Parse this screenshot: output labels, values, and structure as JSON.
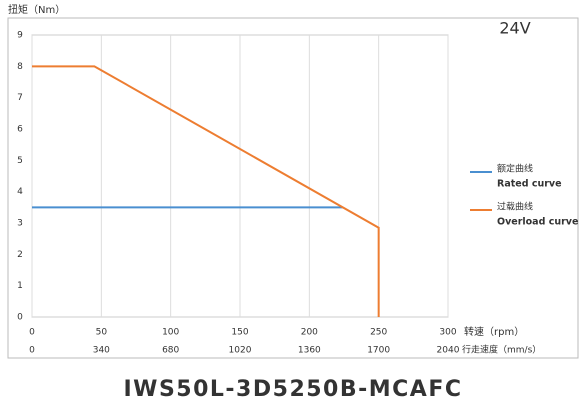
{
  "chart_data": {
    "type": "line",
    "title": "24V",
    "ylabel": "扭矩（Nm）",
    "xlabel": "转速（rpm）",
    "x2label": "行走速度（mm/s）",
    "caption": "IWS50L-3D5250B-MCAFC",
    "xlim": [
      0,
      300
    ],
    "xticks": [
      0,
      50,
      100,
      150,
      200,
      250,
      300
    ],
    "x2lim": [
      0,
      2040
    ],
    "x2ticks": [
      0,
      340,
      680,
      1020,
      1360,
      1700,
      2040
    ],
    "ylim": [
      0,
      9
    ],
    "yticks": [
      0,
      1,
      2,
      3,
      4,
      5,
      6,
      7,
      8,
      9
    ],
    "grid": true,
    "legend": "right",
    "series": [
      {
        "name": "额定曲线",
        "subname": "Rated curve",
        "color": "#4a8fd0",
        "x": [
          0,
          224
        ],
        "values": [
          3.5,
          3.5
        ]
      },
      {
        "name": "过载曲线",
        "subname": "Overload curve",
        "color": "#ed7d31",
        "x": [
          0,
          45,
          250,
          250
        ],
        "values": [
          8,
          8,
          2.85,
          0
        ]
      }
    ]
  }
}
